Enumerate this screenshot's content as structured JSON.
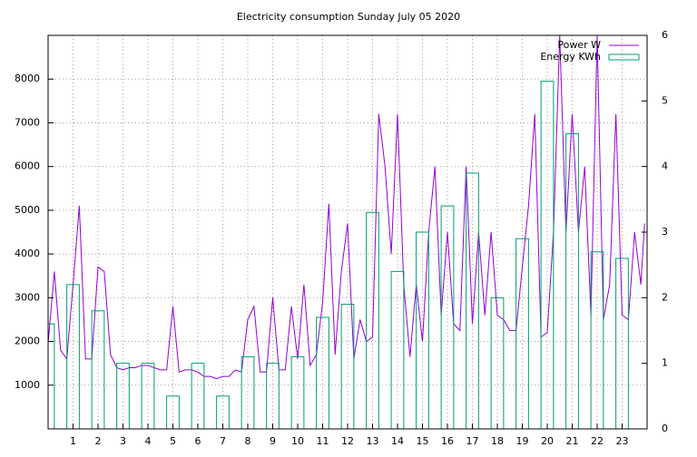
{
  "chart_data": {
    "type": "line",
    "title": "Electricity consumption Sunday July 05 2020",
    "xlim": [
      0,
      24
    ],
    "xticks": [
      1,
      2,
      3,
      4,
      5,
      6,
      7,
      8,
      9,
      10,
      11,
      12,
      13,
      14,
      15,
      16,
      17,
      18,
      19,
      20,
      21,
      22,
      23
    ],
    "ylim": [
      0,
      9000
    ],
    "yticks": [
      1000,
      2000,
      3000,
      4000,
      5000,
      6000,
      7000,
      8000
    ],
    "y2lim": [
      0,
      6
    ],
    "y2ticks": [
      0,
      1,
      2,
      3,
      4,
      5,
      6
    ],
    "grid": true,
    "legend": "top-right",
    "series": [
      {
        "name": "Power W",
        "color": "#9400d3",
        "kind": "line",
        "x": [
          0,
          0.25,
          0.5,
          0.75,
          1,
          1.25,
          1.5,
          1.75,
          2,
          2.25,
          2.5,
          2.75,
          3,
          3.25,
          3.5,
          3.75,
          4,
          4.25,
          4.5,
          4.75,
          5,
          5.25,
          5.5,
          5.75,
          6,
          6.25,
          6.5,
          6.75,
          7,
          7.25,
          7.5,
          7.75,
          8,
          8.25,
          8.5,
          8.75,
          9,
          9.25,
          9.5,
          9.75,
          10,
          10.25,
          10.5,
          10.75,
          11,
          11.25,
          11.5,
          11.75,
          12,
          12.25,
          12.5,
          12.75,
          13,
          13.25,
          13.5,
          13.75,
          14,
          14.25,
          14.5,
          14.75,
          15,
          15.25,
          15.5,
          15.75,
          16,
          16.25,
          16.5,
          16.75,
          17,
          17.25,
          17.5,
          17.75,
          18,
          18.25,
          18.5,
          18.75,
          19,
          19.25,
          19.5,
          19.75,
          20,
          20.25,
          20.5,
          20.75,
          21,
          21.25,
          21.5,
          21.75,
          22,
          22.25,
          22.5,
          22.75,
          23,
          23.25,
          23.5,
          23.75,
          23.9
        ],
        "values": [
          1950,
          3600,
          1800,
          1600,
          3300,
          5100,
          1600,
          1600,
          3700,
          3600,
          1700,
          1400,
          1350,
          1400,
          1400,
          1450,
          1450,
          1400,
          1350,
          1350,
          2800,
          1300,
          1350,
          1350,
          1300,
          1200,
          1200,
          1150,
          1200,
          1200,
          1350,
          1300,
          2500,
          2800,
          1300,
          1300,
          3000,
          1350,
          1350,
          2800,
          1600,
          3300,
          1450,
          1700,
          2900,
          5150,
          1700,
          3600,
          4700,
          1600,
          2500,
          2000,
          2100,
          7200,
          6000,
          4000,
          7200,
          3300,
          1650,
          3300,
          2000,
          4500,
          6000,
          2600,
          4500,
          2400,
          2250,
          6000,
          2400,
          4500,
          2600,
          4500,
          2600,
          2500,
          2250,
          2250,
          3700,
          5100,
          7200,
          2100,
          2200,
          4500,
          9000,
          4500,
          7200,
          4500,
          6000,
          2600,
          9000,
          2500,
          3300,
          7200,
          2600,
          2500,
          4500,
          3300,
          4700
        ]
      },
      {
        "name": "Energy KWh",
        "color": "#009e73",
        "kind": "boxes",
        "axis": "y2",
        "x": [
          0,
          1,
          2,
          3,
          4,
          5,
          6,
          7,
          8,
          9,
          10,
          11,
          12,
          13,
          14,
          15,
          16,
          17,
          18,
          19,
          20,
          21,
          22,
          23
        ],
        "values": [
          1.6,
          2.2,
          1.8,
          1.0,
          1.0,
          0.5,
          1.0,
          0.5,
          1.1,
          1.0,
          1.1,
          1.7,
          1.9,
          3.3,
          2.4,
          3.0,
          3.4,
          3.9,
          2.0,
          2.9,
          5.3,
          4.5,
          2.7,
          2.6
        ]
      }
    ]
  }
}
